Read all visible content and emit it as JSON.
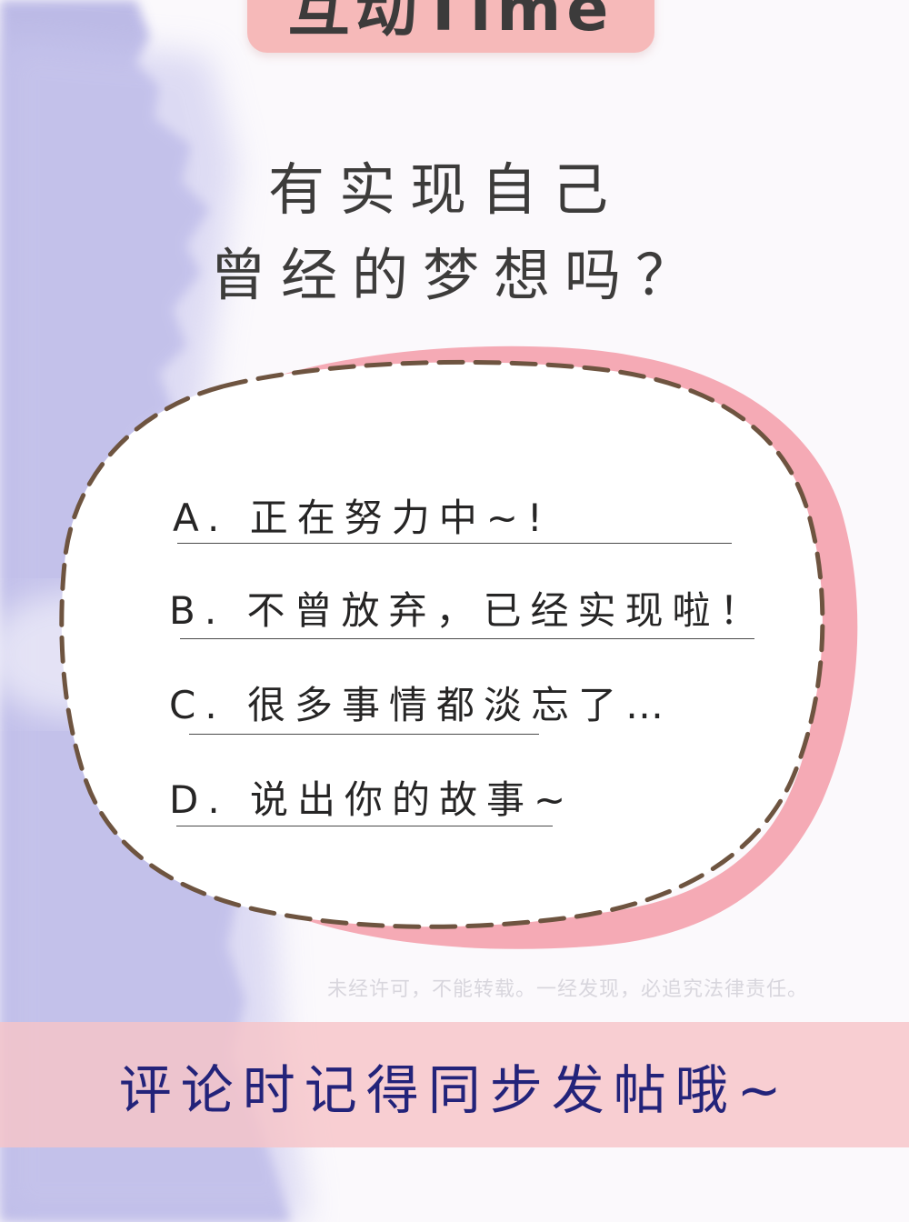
{
  "header": {
    "title": "互动Time"
  },
  "question": {
    "line1": "有实现自己",
    "line2": "曾经的梦想吗？"
  },
  "options": [
    {
      "text": "A. 正在努力中~!"
    },
    {
      "text": "B. 不曾放弃，已经实现啦！"
    },
    {
      "text": "C. 很多事情都淡忘了…"
    },
    {
      "text": "D. 说出你的故事~"
    }
  ],
  "watermark": "未经许可，不能转载。一经发现，必追究法律责任。",
  "footer": {
    "text": "评论时记得同步发帖哦~"
  },
  "colors": {
    "purple_wash": "#b8b6e4",
    "pink_shadow": "#f4a8b4",
    "dashed_outline": "#6b5240",
    "footer_band": "#f6c4c8",
    "footer_text": "#23237a"
  }
}
